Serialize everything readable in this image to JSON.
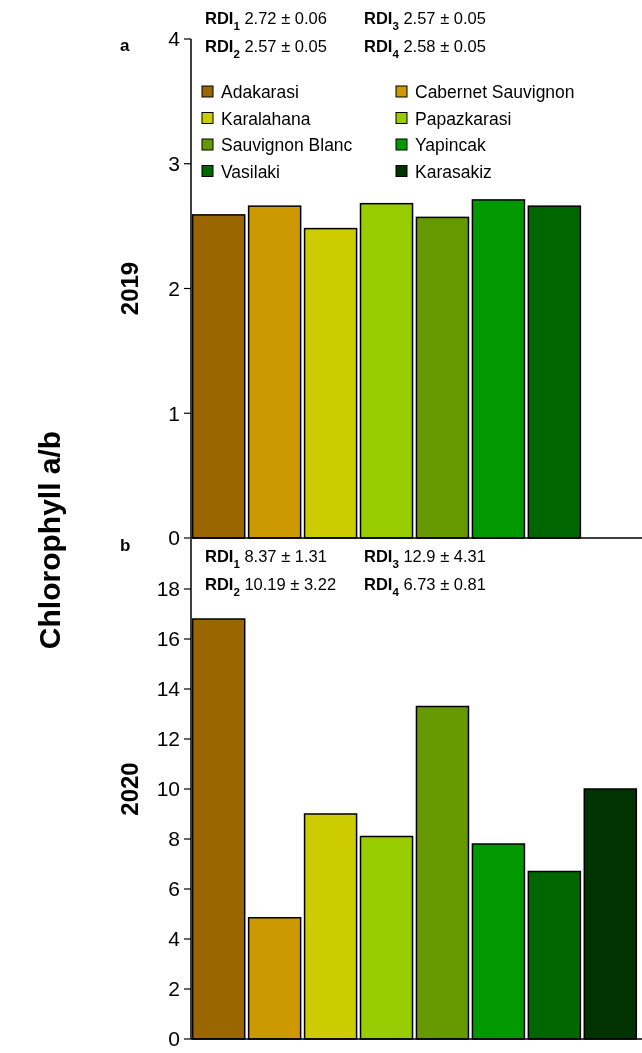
{
  "chart_data": [
    {
      "type": "bar",
      "title": "a",
      "ylabel": "2019",
      "categories": [
        null
      ],
      "ylim": [
        0,
        4
      ],
      "yticks": [
        0,
        1,
        2,
        3,
        4
      ],
      "tick_labels": "y",
      "legend": "top",
      "annotations": [
        "RDI$_{1}$ 2.72 ± 0.06",
        "RDI$_{3}$ 2.57 ± 0.05",
        "RDI$_{2}$ 2.57 ± 0.05",
        "RDI$_{4}$ 2.58 ± 0.05",
        "Chlorophyll a/b"
      ],
      "series": [
        {
          "name": "Adakarasi",
          "color": "#996600",
          "values": [
            2.59
          ]
        },
        {
          "name": "Cabernet Sauvignon",
          "color": "#cc9900",
          "values": [
            2.66
          ]
        },
        {
          "name": "Karalahana",
          "color": "#cccc00",
          "values": [
            2.48
          ]
        },
        {
          "name": "Papazkarasi",
          "color": "#99cc00",
          "values": [
            2.68
          ]
        },
        {
          "name": "Sauvignon Blanc",
          "color": "#669900",
          "values": [
            2.57
          ]
        },
        {
          "name": "Yapincak",
          "color": "#009900",
          "values": [
            2.71
          ]
        },
        {
          "name": "Vasilaki",
          "color": "#006600",
          "values": [
            2.66
          ]
        },
        {
          "name": "Karasakiz",
          "color": "#003300",
          "values": [
            null
          ]
        }
      ]
    },
    {
      "type": "bar",
      "title": "b",
      "ylabel": "2020",
      "categories": [
        null
      ],
      "ylim": [
        0,
        20
      ],
      "yticks": [
        0,
        2,
        4,
        6,
        8,
        10,
        12,
        14,
        16,
        18
      ],
      "tick_labels": "y",
      "annotations": [
        "RDI$_{1}$ 8.37 ± 1.31",
        "RDI$_{3}$ 12.9 ± 4.31",
        "RDI$_{2}$ 10.19 ± 3.22",
        "RDI$_{4}$ 6.73 ± 0.81"
      ],
      "series": [
        {
          "color": "#996600",
          "values": [
            16.8
          ]
        },
        {
          "color": "#cc9900",
          "values": [
            4.85
          ]
        },
        {
          "color": "#cccc00",
          "values": [
            9.0
          ]
        },
        {
          "color": "#99cc00",
          "values": [
            8.1
          ]
        },
        {
          "color": "#669900",
          "values": [
            13.3
          ]
        },
        {
          "color": "#009900",
          "values": [
            7.8
          ]
        },
        {
          "color": "#006600",
          "values": [
            6.7
          ]
        },
        {
          "color": "#003300",
          "values": [
            10.0
          ]
        }
      ]
    }
  ]
}
